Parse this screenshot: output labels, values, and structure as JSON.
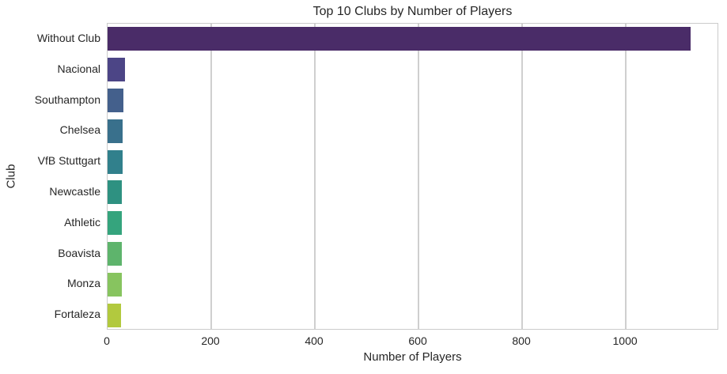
{
  "chart_data": {
    "type": "bar",
    "orientation": "horizontal",
    "title": "Top 10 Clubs by Number of Players",
    "xlabel": "Number of Players",
    "ylabel": "Club",
    "categories": [
      "Without Club",
      "Nacional",
      "Southampton",
      "Chelsea",
      "VfB Stuttgart",
      "Newcastle",
      "Athletic",
      "Boavista",
      "Monza",
      "Fortaleza"
    ],
    "values": [
      1125,
      33,
      30,
      29,
      29,
      28,
      28,
      27,
      27,
      26
    ],
    "bar_colors": [
      "#4a2c68",
      "#4c4586",
      "#44608c",
      "#39708c",
      "#31808c",
      "#2e9181",
      "#35a47d",
      "#5eb46c",
      "#87c45f",
      "#b2c93e"
    ],
    "xlim": [
      0,
      1180
    ],
    "xticks": [
      0,
      200,
      400,
      600,
      800,
      1000
    ],
    "grid": "vertical-only",
    "legend": "none",
    "background_color": "#ffffff",
    "text_color": "#262626",
    "grid_color": "#cfcfcf"
  }
}
